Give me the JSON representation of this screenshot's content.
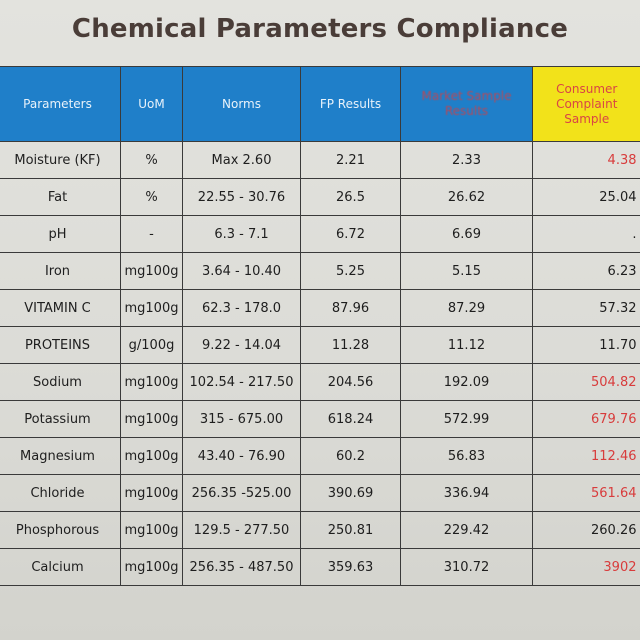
{
  "title": "Chemical Parameters Compliance",
  "headers": {
    "parameters": "Parameters",
    "uom": "UoM",
    "norms": "Norms",
    "fp_results": "FP Results",
    "market_sample": "Market Sample Results",
    "consumer_complaint": "Consumer Complaint Sample"
  },
  "rows": [
    {
      "parameter": "Moisture (KF)",
      "uom": "%",
      "norms": "Max 2.60",
      "fp": "2.21",
      "market": "2.33",
      "consumer": "4.38"
    },
    {
      "parameter": "Fat",
      "uom": "%",
      "norms": "22.55 - 30.76",
      "fp": "26.5",
      "market": "26.62",
      "consumer": "25.04"
    },
    {
      "parameter": "pH",
      "uom": "-",
      "norms": "6.3 - 7.1",
      "fp": "6.72",
      "market": "6.69",
      "consumer": "."
    },
    {
      "parameter": "Iron",
      "uom": "mg100g",
      "norms": "3.64 - 10.40",
      "fp": "5.25",
      "market": "5.15",
      "consumer": "6.23"
    },
    {
      "parameter": "VITAMIN C",
      "uom": "mg100g",
      "norms": "62.3 - 178.0",
      "fp": "87.96",
      "market": "87.29",
      "consumer": "57.32"
    },
    {
      "parameter": "PROTEINS",
      "uom": "g/100g",
      "norms": "9.22 - 14.04",
      "fp": "11.28",
      "market": "11.12",
      "consumer": "11.70"
    },
    {
      "parameter": "Sodium",
      "uom": "mg100g",
      "norms": "102.54 - 217.50",
      "fp": "204.56",
      "market": "192.09",
      "consumer": "504.82"
    },
    {
      "parameter": "Potassium",
      "uom": "mg100g",
      "norms": "315 - 675.00",
      "fp": "618.24",
      "market": "572.99",
      "consumer": "679.76"
    },
    {
      "parameter": "Magnesium",
      "uom": "mg100g",
      "norms": "43.40 - 76.90",
      "fp": "60.2",
      "market": "56.83",
      "consumer": "112.46"
    },
    {
      "parameter": "Chloride",
      "uom": "mg100g",
      "norms": "256.35 -525.00",
      "fp": "390.69",
      "market": "336.94",
      "consumer": "561.64"
    },
    {
      "parameter": "Phosphorous",
      "uom": "mg100g",
      "norms": "129.5 - 277.50",
      "fp": "250.81",
      "market": "229.42",
      "consumer": "260.26"
    },
    {
      "parameter": "Calcium",
      "uom": "mg100g",
      "norms": "256.35 - 487.50",
      "fp": "359.63",
      "market": "310.72",
      "consumer": "3902"
    }
  ],
  "colors": {
    "header_bg": "#1f7fc9",
    "consumer_header_bg": "#f2e21a",
    "alert_red": "#d83c3c",
    "title_color": "#4a3d38"
  }
}
